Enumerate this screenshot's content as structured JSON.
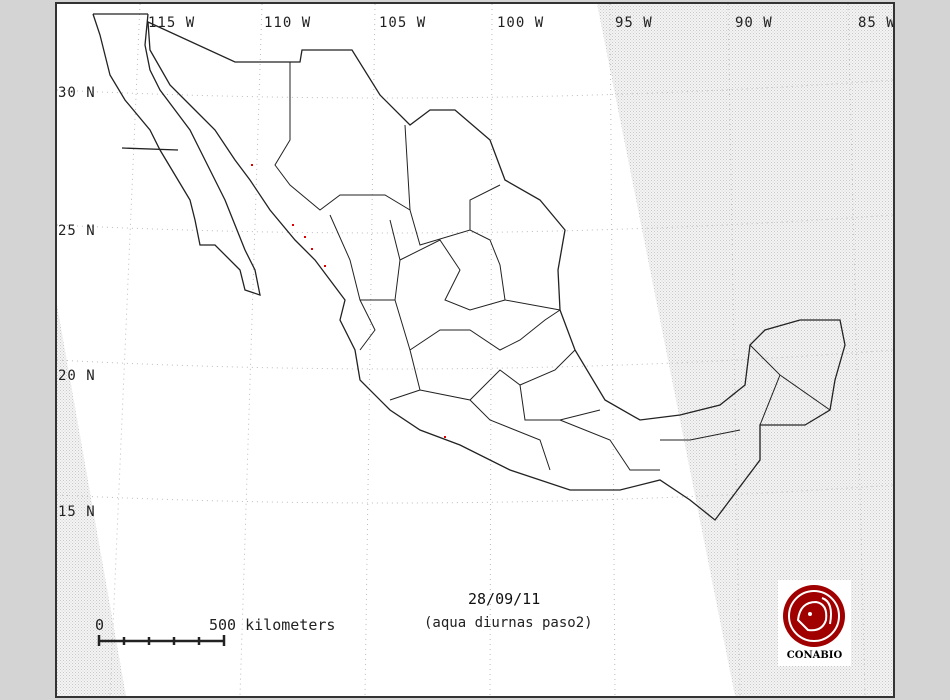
{
  "longitude_labels": [
    "115 W",
    "110 W",
    "105 W",
    "100 W",
    "95 W",
    "90 W",
    "85 W"
  ],
  "latitude_labels": [
    "30 N",
    "25 N",
    "20 N",
    "15 N"
  ],
  "date": "28/09/11",
  "subtitle": "(aqua diurnas paso2)",
  "scale_bar": {
    "start_label": "0",
    "end_label": "500 kilometers",
    "segments": 5
  },
  "logo": {
    "text": "CONABIO",
    "color": "#a00000"
  },
  "colors": {
    "background": "#d4d4d4",
    "map": "#ffffff",
    "outline": "#222222",
    "hotspot": "#e00000",
    "no_coverage_hatch": "#cfcfcf"
  }
}
